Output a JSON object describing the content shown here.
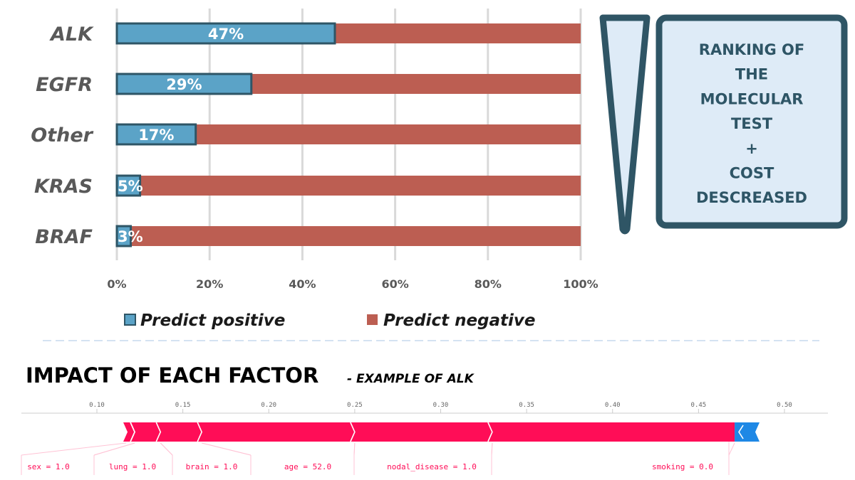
{
  "colors": {
    "positive": "#5ba3c7",
    "positive_border": "#2e5566",
    "negative": "#bc5e52",
    "grid": "#d9d9d9",
    "box_fill": "#deebf7",
    "box_border": "#2f5565",
    "shap_red": "#ff0d57",
    "shap_blue": "#1e88e5"
  },
  "chart_data": [
    {
      "type": "bar",
      "orientation": "horizontal",
      "stacked": true,
      "categories": [
        "ALK",
        "EGFR",
        "Other",
        "KRAS",
        "BRAF"
      ],
      "series": [
        {
          "name": "Predict positive",
          "values": [
            47,
            29,
            17,
            5,
            3
          ],
          "labels": [
            "47%",
            "29%",
            "17%",
            "5%",
            "3%"
          ]
        },
        {
          "name": "Predict negative",
          "values": [
            53,
            71,
            83,
            95,
            97
          ]
        }
      ],
      "xlim": [
        0,
        100
      ],
      "xticks": [
        "0%",
        "20%",
        "40%",
        "60%",
        "80%",
        "100%"
      ],
      "grid": true,
      "legend_position": "bottom"
    },
    {
      "type": "force",
      "axis_ticks": [
        "0.10",
        "0.15",
        "0.20",
        "0.25",
        "0.30",
        "0.35",
        "0.40",
        "0.45",
        "0.50"
      ],
      "axis_values": [
        0.1,
        0.15,
        0.2,
        0.25,
        0.3,
        0.35,
        0.4,
        0.45,
        0.5
      ],
      "segments": [
        {
          "label": "sex = 1.0",
          "from": 0.117,
          "to": 0.122
        },
        {
          "label": "lung = 1.0",
          "from": 0.122,
          "to": 0.137
        },
        {
          "label": "brain = 1.0",
          "from": 0.137,
          "to": 0.161
        },
        {
          "label": "age = 52.0",
          "from": 0.161,
          "to": 0.25
        },
        {
          "label": "nodal_disease = 1.0",
          "from": 0.25,
          "to": 0.33
        },
        {
          "label": "smoking = 0.0",
          "from": 0.33,
          "to": 0.471
        }
      ],
      "negative_segment": {
        "from": 0.471,
        "to": 0.483
      }
    }
  ],
  "ranking_box": {
    "lines": [
      "RANKING OF",
      "THE",
      "MOLECULAR",
      "TEST",
      "+",
      "COST",
      "DESCREASED"
    ]
  },
  "impact": {
    "title": "IMPACT OF EACH FACTOR",
    "subtitle": "- EXAMPLE OF ALK"
  }
}
